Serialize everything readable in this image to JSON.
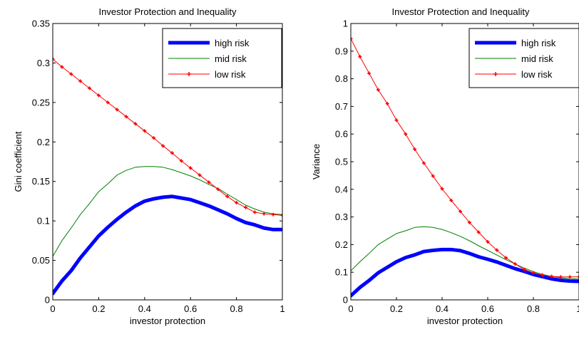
{
  "chart_data": [
    {
      "type": "line",
      "title": "Investor Protection and Inequality",
      "xlabel": "investor protection",
      "ylabel": "Gini coefficient",
      "xlim": [
        0,
        1
      ],
      "ylim": [
        0,
        0.35
      ],
      "xticks": [
        "0",
        "0.2",
        "0.4",
        "0.6",
        "0.8",
        "1"
      ],
      "xtick_values": [
        0,
        0.2,
        0.4,
        0.6,
        0.8,
        1
      ],
      "yticks": [
        "0",
        "0.05",
        "0.1",
        "0.15",
        "0.2",
        "0.25",
        "0.3",
        "0.35"
      ],
      "ytick_values": [
        0,
        0.05,
        0.1,
        0.15,
        0.2,
        0.25,
        0.3,
        0.35
      ],
      "legend_position": "top-right",
      "grid": false,
      "series": [
        {
          "name": "high risk",
          "color": "#0000ff",
          "style": "thick",
          "x": [
            0,
            0.04,
            0.08,
            0.12,
            0.16,
            0.2,
            0.24,
            0.28,
            0.32,
            0.36,
            0.4,
            0.44,
            0.48,
            0.52,
            0.56,
            0.6,
            0.64,
            0.68,
            0.72,
            0.76,
            0.8,
            0.84,
            0.88,
            0.92,
            0.96,
            1
          ],
          "y": [
            0.008,
            0.024,
            0.037,
            0.053,
            0.067,
            0.081,
            0.092,
            0.102,
            0.111,
            0.119,
            0.125,
            0.128,
            0.13,
            0.131,
            0.129,
            0.127,
            0.123,
            0.119,
            0.114,
            0.109,
            0.103,
            0.098,
            0.095,
            0.091,
            0.089,
            0.089
          ]
        },
        {
          "name": "mid risk",
          "color": "#008000",
          "style": "thin",
          "x": [
            0,
            0.04,
            0.08,
            0.12,
            0.16,
            0.2,
            0.24,
            0.28,
            0.32,
            0.36,
            0.4,
            0.44,
            0.48,
            0.52,
            0.56,
            0.6,
            0.64,
            0.68,
            0.72,
            0.76,
            0.8,
            0.84,
            0.88,
            0.92,
            0.96,
            1
          ],
          "y": [
            0.055,
            0.075,
            0.091,
            0.108,
            0.122,
            0.137,
            0.147,
            0.158,
            0.164,
            0.168,
            0.169,
            0.169,
            0.168,
            0.165,
            0.161,
            0.157,
            0.152,
            0.146,
            0.141,
            0.134,
            0.127,
            0.12,
            0.115,
            0.111,
            0.109,
            0.108
          ]
        },
        {
          "name": "low risk",
          "color": "#ff0000",
          "style": "marker",
          "x": [
            0,
            0.04,
            0.08,
            0.12,
            0.16,
            0.2,
            0.24,
            0.28,
            0.32,
            0.36,
            0.4,
            0.44,
            0.48,
            0.52,
            0.56,
            0.6,
            0.64,
            0.68,
            0.72,
            0.76,
            0.8,
            0.84,
            0.88,
            0.92,
            0.96,
            1
          ],
          "y": [
            0.305,
            0.295,
            0.286,
            0.277,
            0.268,
            0.259,
            0.25,
            0.241,
            0.232,
            0.223,
            0.214,
            0.205,
            0.195,
            0.186,
            0.176,
            0.167,
            0.158,
            0.149,
            0.14,
            0.131,
            0.123,
            0.117,
            0.111,
            0.109,
            0.108,
            0.107
          ]
        }
      ]
    },
    {
      "type": "line",
      "title": "Investor Protection and Inequality",
      "xlabel": "investor protection",
      "ylabel": "Variance",
      "xlim": [
        0,
        1
      ],
      "ylim": [
        0,
        1
      ],
      "xticks": [
        "0",
        "0.2",
        "0.4",
        "0.6",
        "0.8",
        "1"
      ],
      "xtick_values": [
        0,
        0.2,
        0.4,
        0.6,
        0.8,
        1
      ],
      "yticks": [
        "0",
        "0.1",
        "0.2",
        "0.3",
        "0.4",
        "0.5",
        "0.6",
        "0.7",
        "0.8",
        "0.9",
        "1"
      ],
      "ytick_values": [
        0,
        0.1,
        0.2,
        0.3,
        0.4,
        0.5,
        0.6,
        0.7,
        0.8,
        0.9,
        1
      ],
      "legend_position": "top-right",
      "grid": false,
      "series": [
        {
          "name": "high risk",
          "color": "#0000ff",
          "style": "thick",
          "x": [
            0,
            0.04,
            0.08,
            0.12,
            0.16,
            0.2,
            0.24,
            0.28,
            0.32,
            0.36,
            0.4,
            0.44,
            0.48,
            0.52,
            0.56,
            0.6,
            0.64,
            0.68,
            0.72,
            0.76,
            0.8,
            0.84,
            0.88,
            0.92,
            0.96,
            1
          ],
          "y": [
            0.015,
            0.045,
            0.07,
            0.098,
            0.118,
            0.138,
            0.153,
            0.163,
            0.175,
            0.179,
            0.182,
            0.182,
            0.178,
            0.168,
            0.156,
            0.147,
            0.137,
            0.125,
            0.113,
            0.103,
            0.092,
            0.084,
            0.076,
            0.071,
            0.068,
            0.067
          ]
        },
        {
          "name": "mid risk",
          "color": "#008000",
          "style": "thin",
          "x": [
            0,
            0.04,
            0.08,
            0.12,
            0.16,
            0.2,
            0.24,
            0.28,
            0.32,
            0.36,
            0.4,
            0.44,
            0.48,
            0.52,
            0.56,
            0.6,
            0.64,
            0.68,
            0.72,
            0.76,
            0.8,
            0.84,
            0.88,
            0.92,
            0.96,
            1
          ],
          "y": [
            0.105,
            0.138,
            0.168,
            0.2,
            0.22,
            0.24,
            0.25,
            0.262,
            0.265,
            0.262,
            0.255,
            0.243,
            0.23,
            0.214,
            0.196,
            0.179,
            0.162,
            0.145,
            0.13,
            0.115,
            0.102,
            0.092,
            0.085,
            0.08,
            0.077,
            0.075
          ]
        },
        {
          "name": "low risk",
          "color": "#ff0000",
          "style": "marker",
          "x": [
            0,
            0.04,
            0.08,
            0.12,
            0.16,
            0.2,
            0.24,
            0.28,
            0.32,
            0.36,
            0.4,
            0.44,
            0.48,
            0.52,
            0.56,
            0.6,
            0.64,
            0.68,
            0.72,
            0.76,
            0.8,
            0.84,
            0.88,
            0.92,
            0.96,
            1
          ],
          "y": [
            0.945,
            0.88,
            0.82,
            0.76,
            0.71,
            0.65,
            0.6,
            0.545,
            0.495,
            0.448,
            0.402,
            0.36,
            0.32,
            0.28,
            0.245,
            0.21,
            0.18,
            0.152,
            0.13,
            0.11,
            0.098,
            0.09,
            0.085,
            0.083,
            0.083,
            0.083
          ]
        }
      ]
    }
  ]
}
